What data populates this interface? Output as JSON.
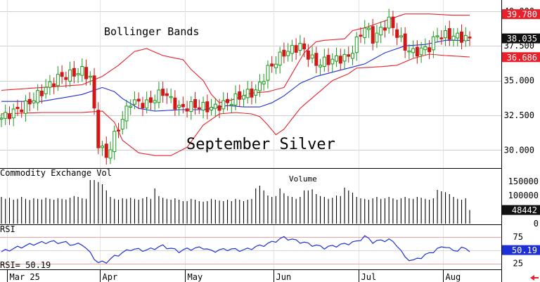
{
  "chart_data": [
    {
      "type": "candlestick",
      "title": "September Silver",
      "annotation": "Bollinger Bands",
      "y_ticks": [
        "40.000",
        "37.500",
        "35.000",
        "32.500",
        "30.000"
      ],
      "ylim": [
        28.7,
        40.8
      ],
      "x_labels": [
        "Mar 25",
        "Apr",
        "May",
        "Jun",
        "Jul",
        "Aug"
      ],
      "price_flags": [
        {
          "label": "39.780",
          "value": 39.78,
          "color": "#e8202a"
        },
        {
          "label": "38.035",
          "value": 38.035,
          "color": "#111111"
        },
        {
          "label": "36.686",
          "value": 36.686,
          "color": "#e8202a"
        }
      ],
      "bands": {
        "upper": [
          [
            0,
            34.3
          ],
          [
            10,
            34.5
          ],
          [
            20,
            34.7
          ],
          [
            25,
            35.3
          ],
          [
            29,
            36.1
          ],
          [
            33,
            37.1
          ],
          [
            36,
            37.3
          ],
          [
            40,
            36.8
          ],
          [
            45,
            36.5
          ],
          [
            47,
            35.8
          ],
          [
            50,
            35.0
          ],
          [
            52,
            34.0
          ],
          [
            54,
            33.4
          ],
          [
            57,
            33.6
          ],
          [
            62,
            34.1
          ],
          [
            66,
            34.2
          ],
          [
            70,
            34.5
          ],
          [
            72,
            35.5
          ],
          [
            75,
            37.0
          ],
          [
            78,
            37.8
          ],
          [
            80,
            37.9
          ],
          [
            85,
            38.0
          ],
          [
            87,
            38.6
          ],
          [
            90,
            38.8
          ],
          [
            95,
            39.3
          ],
          [
            100,
            39.8
          ],
          [
            106,
            39.8
          ],
          [
            112,
            39.7
          ],
          [
            116,
            39.7
          ]
        ],
        "middle": [
          [
            0,
            33.5
          ],
          [
            10,
            33.5
          ],
          [
            20,
            34.0
          ],
          [
            25,
            34.5
          ],
          [
            28,
            34.2
          ],
          [
            30,
            33.7
          ],
          [
            34,
            33.0
          ],
          [
            38,
            32.8
          ],
          [
            44,
            32.9
          ],
          [
            50,
            32.9
          ],
          [
            56,
            33.2
          ],
          [
            60,
            33.1
          ],
          [
            64,
            33.1
          ],
          [
            67,
            33.4
          ],
          [
            70,
            33.9
          ],
          [
            74,
            34.8
          ],
          [
            78,
            35.3
          ],
          [
            82,
            35.6
          ],
          [
            86,
            35.9
          ],
          [
            90,
            36.2
          ],
          [
            95,
            37.0
          ],
          [
            100,
            37.5
          ],
          [
            105,
            37.6
          ],
          [
            110,
            37.9
          ],
          [
            116,
            37.9
          ]
        ],
        "lower": [
          [
            0,
            32.6
          ],
          [
            10,
            32.7
          ],
          [
            20,
            32.7
          ],
          [
            25,
            32.8
          ],
          [
            28,
            32.0
          ],
          [
            30,
            30.7
          ],
          [
            34,
            29.8
          ],
          [
            38,
            29.6
          ],
          [
            42,
            29.6
          ],
          [
            46,
            30.2
          ],
          [
            50,
            31.8
          ],
          [
            54,
            32.6
          ],
          [
            58,
            32.7
          ],
          [
            62,
            32.6
          ],
          [
            64,
            32.4
          ],
          [
            66,
            31.8
          ],
          [
            68,
            31.1
          ],
          [
            70,
            31.5
          ],
          [
            74,
            33.0
          ],
          [
            78,
            34.0
          ],
          [
            82,
            35.0
          ],
          [
            86,
            35.5
          ],
          [
            88,
            35.9
          ],
          [
            94,
            36.0
          ],
          [
            98,
            36.1
          ],
          [
            102,
            36.6
          ],
          [
            106,
            36.9
          ],
          [
            110,
            36.8
          ],
          [
            116,
            36.7
          ]
        ]
      },
      "close": [
        [
          0,
          32.3
        ],
        [
          6,
          33.2
        ],
        [
          10,
          34.2
        ],
        [
          14,
          35.2
        ],
        [
          18,
          35.5
        ],
        [
          20,
          35.7
        ],
        [
          22,
          35.2
        ],
        [
          24,
          30.5
        ],
        [
          26,
          29.5
        ],
        [
          28,
          31.0
        ],
        [
          32,
          33.5
        ],
        [
          36,
          33.3
        ],
        [
          40,
          34.2
        ],
        [
          44,
          33.0
        ],
        [
          48,
          33.2
        ],
        [
          52,
          33.0
        ],
        [
          56,
          33.4
        ],
        [
          60,
          34.0
        ],
        [
          63,
          34.2
        ],
        [
          66,
          35.8
        ],
        [
          70,
          37.0
        ],
        [
          74,
          37.5
        ],
        [
          78,
          36.2
        ],
        [
          82,
          36.5
        ],
        [
          86,
          36.7
        ],
        [
          90,
          38.9
        ],
        [
          92,
          38.0
        ],
        [
          96,
          39.3
        ],
        [
          100,
          37.4
        ],
        [
          102,
          37.0
        ],
        [
          106,
          37.4
        ],
        [
          108,
          38.3
        ],
        [
          112,
          38.2
        ],
        [
          116,
          38.0
        ]
      ],
      "bars": 117
    },
    {
      "type": "bar",
      "title": "Commodity Exchange Vol",
      "annotation": "Volume",
      "y_ticks": [
        "150000",
        "100000",
        "50000",
        "0"
      ],
      "ylim": [
        0,
        185000
      ],
      "last_value_label": "48442",
      "values": [
        95000,
        88000,
        92000,
        85000,
        88000,
        95000,
        88000,
        84000,
        90000,
        88000,
        86000,
        92000,
        88000,
        85000,
        90000,
        88000,
        86000,
        92000,
        98000,
        95000,
        90000,
        88000,
        155000,
        155000,
        148000,
        140000,
        118000,
        95000,
        88000,
        85000,
        90000,
        88000,
        92000,
        88000,
        85000,
        90000,
        95000,
        88000,
        125000,
        98000,
        92000,
        88000,
        85000,
        90000,
        85000,
        80000,
        80000,
        88000,
        85000,
        80000,
        78000,
        80000,
        88000,
        85000,
        82000,
        80000,
        85000,
        80000,
        88000,
        85000,
        80000,
        85000,
        88000,
        125000,
        135000,
        118000,
        100000,
        95000,
        98000,
        125000,
        108000,
        98000,
        95000,
        88000,
        95000,
        118000,
        118000,
        122000,
        105000,
        98000,
        95000,
        88000,
        92000,
        100000,
        98000,
        128000,
        118000,
        110000,
        95000,
        90000,
        88000,
        85000,
        90000,
        95000,
        88000,
        90000,
        95000,
        90000,
        85000,
        90000,
        95000,
        90000,
        88000,
        95000,
        92000,
        88000,
        85000,
        90000,
        120000,
        115000,
        112000,
        105000,
        95000,
        88000,
        85000,
        90000,
        48442
      ]
    },
    {
      "type": "line",
      "title": "RSI",
      "value_label": "RSI=  50.19",
      "y_ticks": [
        "75",
        "25"
      ],
      "ylim": [
        15,
        95
      ],
      "last_value_label": "50.19",
      "values": [
        [
          0,
          47
        ],
        [
          4,
          55
        ],
        [
          8,
          62
        ],
        [
          12,
          66
        ],
        [
          16,
          64
        ],
        [
          18,
          60
        ],
        [
          20,
          62
        ],
        [
          22,
          44
        ],
        [
          24,
          26
        ],
        [
          26,
          28
        ],
        [
          28,
          38
        ],
        [
          32,
          52
        ],
        [
          36,
          50
        ],
        [
          40,
          58
        ],
        [
          44,
          48
        ],
        [
          46,
          52
        ],
        [
          50,
          55
        ],
        [
          52,
          48
        ],
        [
          56,
          52
        ],
        [
          60,
          50
        ],
        [
          63,
          56
        ],
        [
          66,
          62
        ],
        [
          70,
          74
        ],
        [
          72,
          70
        ],
        [
          76,
          62
        ],
        [
          80,
          55
        ],
        [
          84,
          60
        ],
        [
          88,
          66
        ],
        [
          90,
          76
        ],
        [
          92,
          66
        ],
        [
          96,
          70
        ],
        [
          98,
          60
        ],
        [
          100,
          36
        ],
        [
          102,
          30
        ],
        [
          106,
          44
        ],
        [
          108,
          52
        ],
        [
          110,
          58
        ],
        [
          112,
          48
        ],
        [
          114,
          54
        ],
        [
          116,
          50
        ]
      ]
    }
  ]
}
